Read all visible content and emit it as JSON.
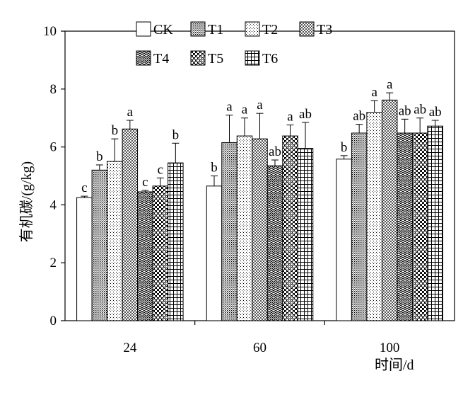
{
  "chart_data": {
    "type": "bar",
    "xlabel": "时间/d",
    "ylabel": "有机碳/(g/kg)",
    "ylim": [
      0,
      10
    ],
    "yticks": [
      0,
      2,
      4,
      6,
      8,
      10
    ],
    "categories": [
      "24",
      "60",
      "100"
    ],
    "legend_placement": "top",
    "grid": false,
    "series": [
      {
        "name": "CK",
        "pattern": "blank",
        "values": [
          4.25,
          4.65,
          5.58
        ],
        "errors": [
          0.05,
          0.35,
          0.12
        ],
        "labels": [
          "c",
          "b",
          "b"
        ]
      },
      {
        "name": "T1",
        "pattern": "dense-dots",
        "values": [
          5.2,
          6.15,
          6.48
        ],
        "errors": [
          0.18,
          0.95,
          0.3
        ],
        "labels": [
          "b",
          "a",
          "ab"
        ]
      },
      {
        "name": "T2",
        "pattern": "fine-grid",
        "values": [
          5.5,
          6.38,
          7.2
        ],
        "errors": [
          0.78,
          0.62,
          0.4
        ],
        "labels": [
          "b",
          "a",
          "a"
        ]
      },
      {
        "name": "T3",
        "pattern": "checker",
        "values": [
          6.62,
          6.28,
          7.62
        ],
        "errors": [
          0.3,
          0.88,
          0.25
        ],
        "labels": [
          "a",
          "a",
          "a"
        ]
      },
      {
        "name": "T4",
        "pattern": "zigzag",
        "values": [
          4.45,
          5.35,
          6.48
        ],
        "errors": [
          0.05,
          0.2,
          0.48
        ],
        "labels": [
          "c",
          "ab",
          "ab"
        ]
      },
      {
        "name": "T5",
        "pattern": "bricks",
        "values": [
          4.65,
          6.38,
          6.48
        ],
        "errors": [
          0.28,
          0.38,
          0.52
        ],
        "labels": [
          "c",
          "a",
          "ab"
        ]
      },
      {
        "name": "T6",
        "pattern": "grid",
        "values": [
          5.45,
          5.95,
          6.72
        ],
        "errors": [
          0.68,
          0.9,
          0.2
        ],
        "labels": [
          "b",
          "ab",
          "ab"
        ]
      }
    ]
  }
}
